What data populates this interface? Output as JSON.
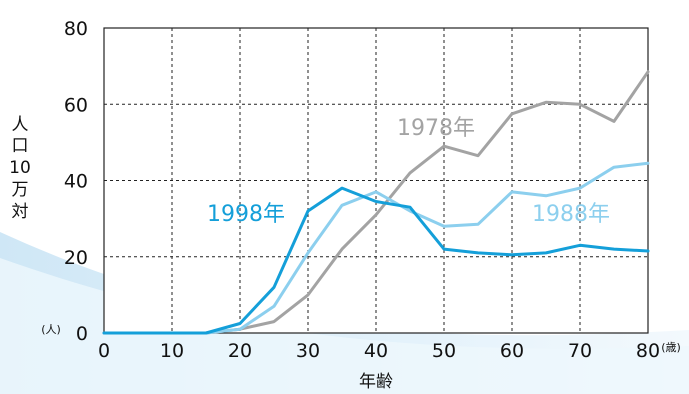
{
  "chart_data": {
    "type": "line",
    "title": "",
    "xlabel": "年齢",
    "ylabel": "人口10万対",
    "x_unit": "(歳)",
    "y_unit": "(人)",
    "xlim": [
      0,
      80
    ],
    "ylim": [
      0,
      80
    ],
    "x_ticks": [
      0,
      10,
      20,
      30,
      40,
      50,
      60,
      70,
      80
    ],
    "y_ticks": [
      0,
      20,
      40,
      60,
      80
    ],
    "grid": true,
    "legend": "inline labels",
    "x": [
      0,
      5,
      10,
      15,
      20,
      25,
      30,
      35,
      40,
      45,
      50,
      55,
      60,
      65,
      70,
      75,
      80
    ],
    "series": [
      {
        "name": "1978年",
        "color": "#a3a3a3",
        "values": [
          0,
          0,
          0,
          0,
          1,
          3,
          10,
          22,
          31,
          42,
          49,
          46.5,
          57.5,
          60.5,
          60,
          55.5,
          68.5
        ]
      },
      {
        "name": "1988年",
        "color": "#8ccfee",
        "values": [
          0,
          0,
          0,
          0,
          1,
          7,
          21,
          33.5,
          37,
          32,
          28,
          28.5,
          37,
          36,
          38,
          43.5,
          44.5
        ]
      },
      {
        "name": "1998年",
        "color": "#149fd9",
        "values": [
          0,
          0,
          0,
          0,
          2.5,
          12,
          32,
          38,
          34.5,
          33,
          22,
          21,
          20.5,
          21,
          23,
          22,
          21.5
        ]
      }
    ]
  }
}
